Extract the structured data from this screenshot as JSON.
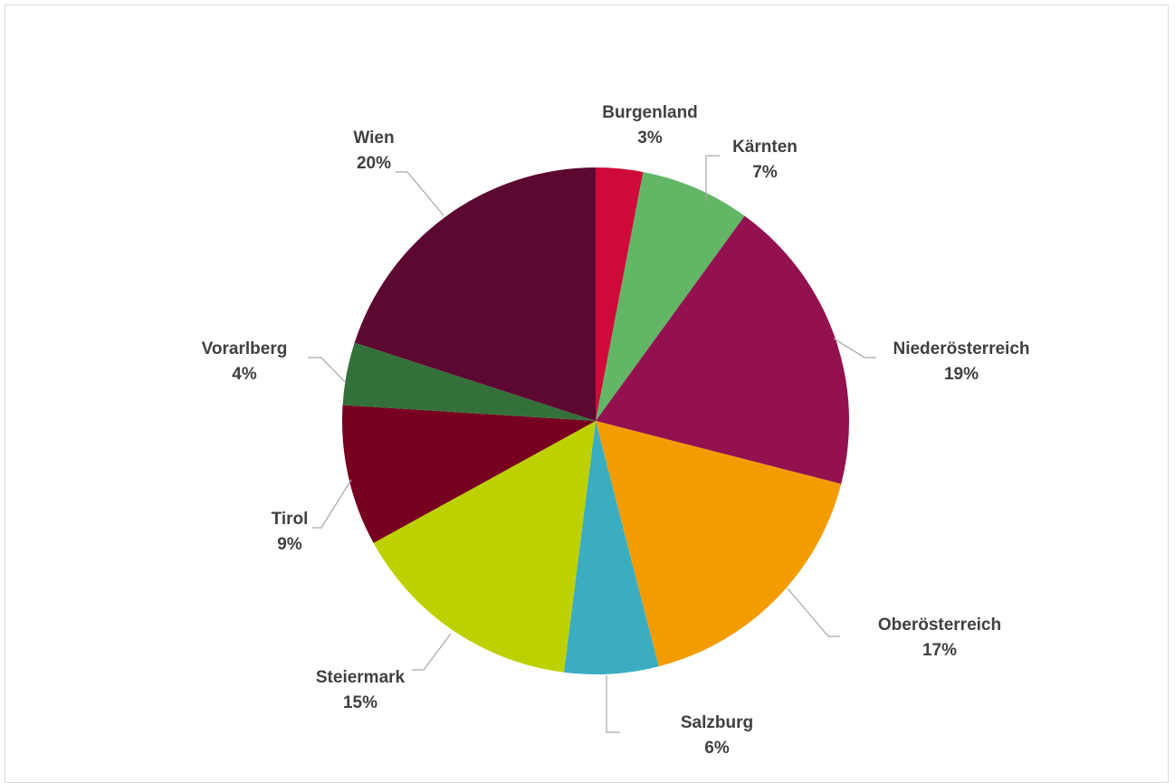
{
  "chart_data": {
    "type": "pie",
    "title": "",
    "legend": "none",
    "start_angle_deg": 0,
    "direction": "clockwise",
    "slices": [
      {
        "name": "Burgenland",
        "value": 3,
        "label": "3%",
        "color": "#CF0A3B"
      },
      {
        "name": "Kärnten",
        "value": 7,
        "label": "7%",
        "color": "#62B666"
      },
      {
        "name": "Niederösterreich",
        "value": 19,
        "label": "19%",
        "color": "#93114F"
      },
      {
        "name": "Oberösterreich",
        "value": 17,
        "label": "17%",
        "color": "#F39C00"
      },
      {
        "name": "Salzburg",
        "value": 6,
        "label": "6%",
        "color": "#3AAEC0"
      },
      {
        "name": "Steiermark",
        "value": 15,
        "label": "15%",
        "color": "#BED100"
      },
      {
        "name": "Tirol",
        "value": 9,
        "label": "9%",
        "color": "#770021"
      },
      {
        "name": "Vorarlberg",
        "value": 4,
        "label": "4%",
        "color": "#34713A"
      },
      {
        "name": "Wien",
        "value": 20,
        "label": "20%",
        "color": "#5C0830"
      }
    ]
  }
}
